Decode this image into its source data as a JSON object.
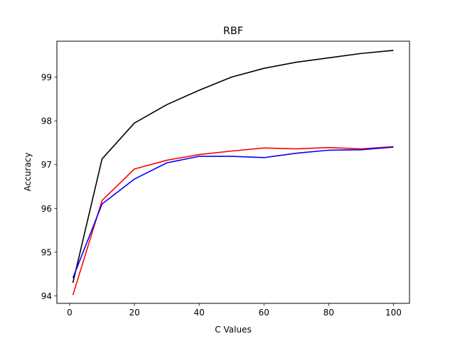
{
  "chart_data": {
    "type": "line",
    "title": "RBF",
    "xlabel": "C Values",
    "ylabel": "Accuracy",
    "xlim": [
      -3.95,
      104.95
    ],
    "ylim": [
      93.83,
      99.82
    ],
    "xticks": [
      0,
      20,
      40,
      60,
      80,
      100
    ],
    "yticks": [
      94,
      95,
      96,
      97,
      98,
      99
    ],
    "grid": false,
    "x": [
      1,
      10,
      20,
      30,
      40,
      50,
      60,
      70,
      80,
      90,
      100
    ],
    "series": [
      {
        "color": "#000000",
        "values": [
          94.3,
          97.13,
          97.95,
          98.37,
          98.7,
          99.0,
          99.2,
          99.34,
          99.44,
          99.54,
          99.61
        ]
      },
      {
        "color": "#ff0000",
        "values": [
          94.02,
          96.18,
          96.9,
          97.1,
          97.23,
          97.31,
          97.38,
          97.36,
          97.39,
          97.36,
          97.41
        ]
      },
      {
        "color": "#0000ff",
        "values": [
          94.41,
          96.1,
          96.67,
          97.04,
          97.19,
          97.19,
          97.16,
          97.26,
          97.33,
          97.34,
          97.4
        ]
      }
    ]
  }
}
